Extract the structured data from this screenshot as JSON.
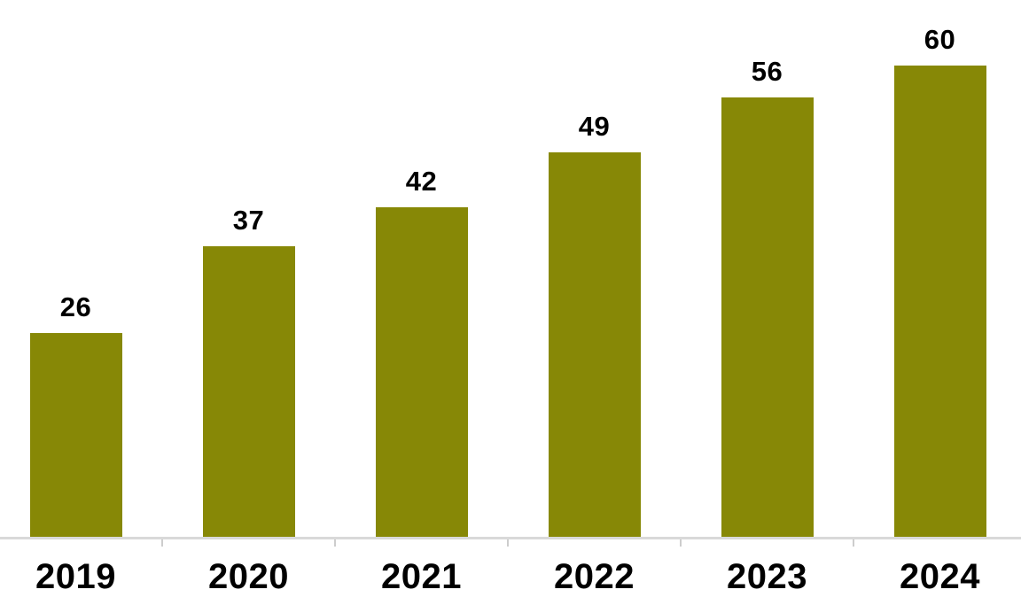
{
  "chart_data": {
    "type": "bar",
    "title": "",
    "xlabel": "",
    "ylabel": "",
    "categories": [
      "2019",
      "2020",
      "2021",
      "2022",
      "2023",
      "2024"
    ],
    "values": [
      26,
      37,
      42,
      49,
      56,
      60
    ],
    "series": [
      {
        "name": "value",
        "values": [
          26,
          37,
          42,
          49,
          56,
          60
        ]
      }
    ],
    "data_labels": [
      "26",
      "37",
      "42",
      "49",
      "56",
      "60"
    ],
    "ylim": [
      0,
      60
    ],
    "grid": false,
    "legend": false,
    "colors": {
      "bar": "#878806",
      "data_label": "#000000",
      "axis_label": "#000000",
      "axis_line": "#d9d9d9",
      "tick": "#cdcdcd",
      "background": "#ffffff"
    }
  }
}
